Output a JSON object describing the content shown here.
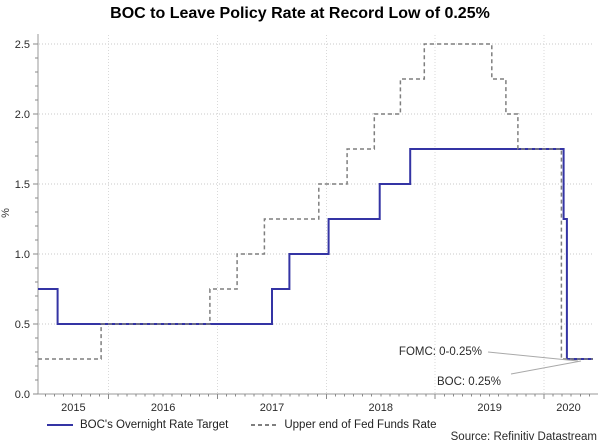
{
  "chart_data": {
    "type": "line",
    "title": "BOC to Leave Policy Rate at Record Low of 0.25%",
    "ylabel": "%",
    "source": "Source: Refinitiv Datastream",
    "grid": true,
    "legend_position": "bottom-left",
    "x_range": [
      2015.35,
      2020.45
    ],
    "ylim": [
      0,
      2.5
    ],
    "y_ticks": [
      0.0,
      0.5,
      1.0,
      1.5,
      2.0,
      2.5
    ],
    "y_tick_labels": [
      "0.0",
      "0.5",
      "1.0",
      "1.5",
      "2.0",
      "2.5"
    ],
    "x_tick_years": [
      2015,
      2016,
      2017,
      2018,
      2019,
      2020
    ],
    "x_tick_labels": [
      "2015",
      "2016",
      "2017",
      "2018",
      "2019",
      "2020"
    ],
    "series": [
      {
        "name": "BOC's Overnight Rate Target",
        "line": "solid",
        "color": "#3434a4",
        "steps": [
          [
            2015.35,
            0.75
          ],
          [
            2015.53,
            0.5
          ],
          [
            2017.5,
            0.75
          ],
          [
            2017.66,
            1.0
          ],
          [
            2018.02,
            1.25
          ],
          [
            2018.49,
            1.5
          ],
          [
            2018.77,
            1.75
          ],
          [
            2020.18,
            1.25
          ],
          [
            2020.21,
            0.25
          ],
          [
            2020.45,
            0.25
          ]
        ]
      },
      {
        "name": "Upper end of Fed Funds Rate",
        "line": "dashed",
        "color": "#7f7f7f",
        "steps": [
          [
            2015.35,
            0.25
          ],
          [
            2015.93,
            0.5
          ],
          [
            2016.93,
            0.75
          ],
          [
            2017.18,
            1.0
          ],
          [
            2017.43,
            1.25
          ],
          [
            2017.93,
            1.5
          ],
          [
            2018.19,
            1.75
          ],
          [
            2018.44,
            2.0
          ],
          [
            2018.68,
            2.25
          ],
          [
            2018.9,
            2.5
          ],
          [
            2019.52,
            2.25
          ],
          [
            2019.65,
            2.0
          ],
          [
            2019.76,
            1.75
          ],
          [
            2020.16,
            0.25
          ],
          [
            2020.45,
            0.25
          ]
        ]
      }
    ],
    "annotations": [
      {
        "id": "fomc",
        "text": "FOMC: 0-0.25%",
        "points_to_value": 0.25
      },
      {
        "id": "boc",
        "text": "BOC: 0.25%",
        "points_to_value": 0.25
      }
    ]
  }
}
